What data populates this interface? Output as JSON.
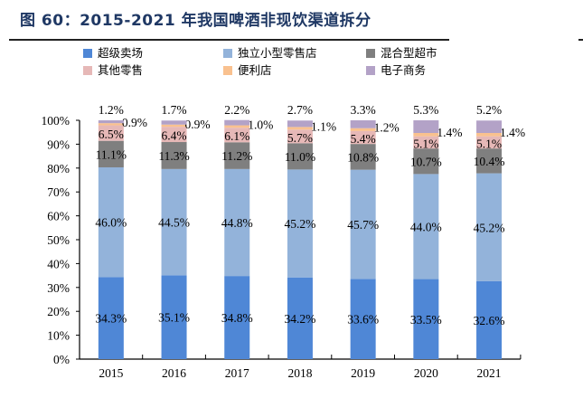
{
  "title": "图 60：2015-2021 年我国啤酒非现饮渠道拆分",
  "chart_data": {
    "type": "stacked-bar",
    "title": "图 60：2015-2021 年我国啤酒非现饮渠道拆分",
    "categories": [
      "2015",
      "2016",
      "2017",
      "2018",
      "2019",
      "2020",
      "2021"
    ],
    "series": [
      {
        "name": "超级卖场",
        "color": "#4F87D6",
        "values": [
          34.3,
          35.1,
          34.8,
          34.2,
          33.6,
          33.5,
          32.6
        ]
      },
      {
        "name": "独立小型零售店",
        "color": "#93B3DA",
        "values": [
          46.0,
          44.5,
          44.8,
          45.2,
          45.7,
          44.0,
          45.2
        ]
      },
      {
        "name": "混合型超市",
        "color": "#7F7F7F",
        "values": [
          11.1,
          11.3,
          11.2,
          11.0,
          10.8,
          10.7,
          10.4
        ]
      },
      {
        "name": "其他零售",
        "color": "#E6B8B7",
        "values": [
          6.5,
          6.4,
          6.1,
          5.7,
          5.4,
          5.1,
          5.1
        ]
      },
      {
        "name": "便利店",
        "color": "#F9C18F",
        "values": [
          0.9,
          0.9,
          1.0,
          1.1,
          1.2,
          1.4,
          1.4
        ]
      },
      {
        "name": "电子商务",
        "color": "#B3A2C7",
        "values": [
          1.2,
          1.7,
          2.2,
          2.7,
          3.3,
          5.3,
          5.2
        ]
      }
    ],
    "value_labels": [
      [
        "34.3%",
        "35.1%",
        "34.8%",
        "34.2%",
        "33.6%",
        "33.5%",
        "32.6%"
      ],
      [
        "46.0%",
        "44.5%",
        "44.8%",
        "45.2%",
        "45.7%",
        "44.0%",
        "45.2%"
      ],
      [
        "11.1%",
        "11.3%",
        "11.2%",
        "11.0%",
        "10.8%",
        "10.7%",
        "10.4%"
      ],
      [
        "6.5%",
        "6.4%",
        "6.1%",
        "5.7%",
        "5.4%",
        "5.1%",
        "5.1%"
      ],
      [
        "0.9%",
        "0.9%",
        "1.0%",
        "1.1%",
        "1.2%",
        "1.4%",
        "1.4%"
      ],
      [
        "1.2%",
        "1.7%",
        "2.2%",
        "2.7%",
        "3.3%",
        "5.3%",
        "5.2%"
      ]
    ],
    "ylim": [
      0,
      100
    ],
    "yticks": [
      "0%",
      "10%",
      "20%",
      "30%",
      "40%",
      "50%",
      "60%",
      "70%",
      "80%",
      "90%",
      "100%"
    ],
    "grid": false,
    "legend": "top"
  }
}
